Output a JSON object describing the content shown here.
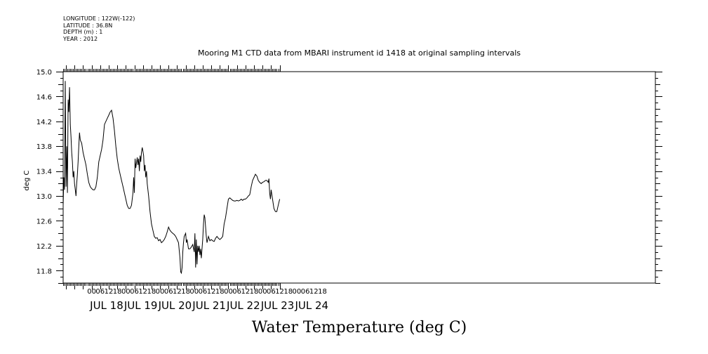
{
  "header": {
    "longitude": "LONGITUDE : 122W(-122)",
    "latitude": "LATITUDE : 36.8N",
    "depth": "DEPTH (m) : 1",
    "year": "YEAR : 2012"
  },
  "chart_data": {
    "type": "line",
    "title": "Mooring M1 CTD data from MBARI instrument id 1418 at original sampling intervals",
    "xlabel": "Water Temperature (deg C)",
    "ylabel": "deg C",
    "ylim": [
      11.6,
      15.0
    ],
    "y_ticks": [
      "11.8",
      "12.2",
      "12.6",
      "13.0",
      "13.4",
      "13.8",
      "14.2",
      "14.6",
      "15.0"
    ],
    "x_range_hours": [
      -20,
      126
    ],
    "x_unit": "hours from 2012-07-18 00:00",
    "hour_tick_labels": [
      "00",
      "06",
      "12",
      "18",
      "00",
      "06",
      "12",
      "18",
      "00",
      "06",
      "12",
      "18",
      "00",
      "06",
      "12",
      "18",
      "00",
      "06",
      "12",
      "18",
      "00",
      "06",
      "12",
      "18",
      "00",
      "06",
      "12",
      "18"
    ],
    "day_labels": [
      "JUL 18",
      "JUL 19",
      "JUL 20",
      "JUL 21",
      "JUL 22",
      "JUL 23",
      "JUL 24"
    ],
    "grid": false,
    "series": [
      {
        "values": [
          [
            -20,
            12.85
          ],
          [
            -19.5,
            13.3
          ],
          [
            -19,
            13.1
          ],
          [
            -18.5,
            14.85
          ],
          [
            -18,
            13.15
          ],
          [
            -17.5,
            13.8
          ],
          [
            -17,
            13.05
          ],
          [
            -16.5,
            14.55
          ],
          [
            -16,
            14.35
          ],
          [
            -15.5,
            14.75
          ],
          [
            -15,
            14.15
          ],
          [
            -14.5,
            13.95
          ],
          [
            -14,
            13.7
          ],
          [
            -13.5,
            13.55
          ],
          [
            -13,
            13.3
          ],
          [
            -12.5,
            13.4
          ],
          [
            -12,
            13.2
          ],
          [
            -11.5,
            13.1
          ],
          [
            -11,
            13.0
          ],
          [
            -10.5,
            13.2
          ],
          [
            -10,
            13.35
          ],
          [
            -9.5,
            13.55
          ],
          [
            -9,
            13.8
          ],
          [
            -8.5,
            14.02
          ],
          [
            -8,
            13.9
          ],
          [
            -7,
            13.85
          ],
          [
            -6,
            13.7
          ],
          [
            -5,
            13.6
          ],
          [
            -4,
            13.5
          ],
          [
            -3,
            13.35
          ],
          [
            -2,
            13.22
          ],
          [
            -1,
            13.15
          ],
          [
            0,
            13.12
          ],
          [
            1,
            13.1
          ],
          [
            2,
            13.1
          ],
          [
            3,
            13.15
          ],
          [
            4,
            13.3
          ],
          [
            5,
            13.55
          ],
          [
            6,
            13.65
          ],
          [
            7,
            13.75
          ],
          [
            8,
            13.9
          ],
          [
            9,
            14.15
          ],
          [
            10,
            14.2
          ],
          [
            11,
            14.25
          ],
          [
            12,
            14.3
          ],
          [
            13,
            14.35
          ],
          [
            14,
            14.38
          ],
          [
            15,
            14.25
          ],
          [
            16,
            14.05
          ],
          [
            17,
            13.8
          ],
          [
            18,
            13.6
          ],
          [
            19,
            13.45
          ],
          [
            20,
            13.35
          ],
          [
            21,
            13.25
          ],
          [
            22,
            13.15
          ],
          [
            23,
            13.05
          ],
          [
            24,
            12.95
          ],
          [
            25,
            12.85
          ],
          [
            26,
            12.8
          ],
          [
            27,
            12.8
          ],
          [
            28,
            12.85
          ],
          [
            29,
            13.05
          ],
          [
            29.5,
            13.3
          ],
          [
            30,
            13.05
          ],
          [
            30.5,
            13.6
          ],
          [
            31,
            13.45
          ],
          [
            32,
            13.62
          ],
          [
            32.5,
            13.5
          ],
          [
            33,
            13.6
          ],
          [
            33.5,
            13.4
          ],
          [
            34,
            13.65
          ],
          [
            34.5,
            13.55
          ],
          [
            35,
            13.7
          ],
          [
            35.5,
            13.78
          ],
          [
            36,
            13.72
          ],
          [
            36.5,
            13.65
          ],
          [
            37,
            13.4
          ],
          [
            37.5,
            13.5
          ],
          [
            38,
            13.3
          ],
          [
            38.5,
            13.4
          ],
          [
            39,
            13.2
          ],
          [
            40,
            13.0
          ],
          [
            41,
            12.75
          ],
          [
            42,
            12.55
          ],
          [
            43,
            12.45
          ],
          [
            44,
            12.35
          ],
          [
            45,
            12.32
          ],
          [
            46,
            12.33
          ],
          [
            47,
            12.28
          ],
          [
            48,
            12.3
          ],
          [
            49,
            12.25
          ],
          [
            50,
            12.27
          ],
          [
            51,
            12.3
          ],
          [
            52,
            12.35
          ],
          [
            53,
            12.42
          ],
          [
            54,
            12.5
          ],
          [
            55,
            12.45
          ],
          [
            56,
            12.42
          ],
          [
            57,
            12.4
          ],
          [
            58,
            12.38
          ],
          [
            59,
            12.35
          ],
          [
            60,
            12.3
          ],
          [
            61,
            12.25
          ],
          [
            62,
            12.0
          ],
          [
            62.5,
            11.78
          ],
          [
            63,
            11.76
          ],
          [
            63.5,
            11.85
          ],
          [
            64,
            12.1
          ],
          [
            64.5,
            12.25
          ],
          [
            65,
            12.35
          ],
          [
            66,
            12.4
          ],
          [
            66.5,
            12.25
          ],
          [
            67,
            12.3
          ],
          [
            68,
            12.15
          ],
          [
            69,
            12.15
          ],
          [
            70,
            12.18
          ],
          [
            71,
            12.22
          ],
          [
            72,
            12.1
          ],
          [
            72.5,
            12.4
          ],
          [
            73,
            11.85
          ],
          [
            73.5,
            12.3
          ],
          [
            74,
            11.9
          ],
          [
            74.5,
            12.2
          ],
          [
            75,
            12.1
          ],
          [
            75.5,
            12.2
          ],
          [
            76,
            12.05
          ],
          [
            76.5,
            12.15
          ],
          [
            77,
            12.0
          ],
          [
            77.5,
            12.15
          ],
          [
            78,
            12.3
          ],
          [
            78.5,
            12.55
          ],
          [
            79,
            12.7
          ],
          [
            79.5,
            12.65
          ],
          [
            80,
            12.5
          ],
          [
            80.5,
            12.35
          ],
          [
            81,
            12.25
          ],
          [
            82,
            12.35
          ],
          [
            83,
            12.28
          ],
          [
            84,
            12.3
          ],
          [
            85,
            12.28
          ],
          [
            86,
            12.27
          ],
          [
            87,
            12.32
          ],
          [
            88,
            12.35
          ],
          [
            89,
            12.32
          ],
          [
            90,
            12.3
          ],
          [
            91,
            12.32
          ],
          [
            92,
            12.35
          ],
          [
            93,
            12.55
          ],
          [
            94,
            12.65
          ],
          [
            95,
            12.8
          ],
          [
            96,
            12.95
          ],
          [
            97,
            12.97
          ],
          [
            98,
            12.95
          ],
          [
            99,
            12.93
          ],
          [
            100,
            12.92
          ],
          [
            101,
            12.92
          ],
          [
            102,
            12.93
          ],
          [
            103,
            12.92
          ],
          [
            104,
            12.93
          ],
          [
            105,
            12.95
          ],
          [
            106,
            12.93
          ],
          [
            107,
            12.95
          ],
          [
            108,
            12.95
          ],
          [
            109,
            12.97
          ],
          [
            110,
            13.0
          ],
          [
            111,
            13.02
          ],
          [
            112,
            13.15
          ],
          [
            113,
            13.25
          ],
          [
            114,
            13.3
          ],
          [
            115,
            13.35
          ],
          [
            116,
            13.32
          ],
          [
            117,
            13.25
          ],
          [
            118,
            13.22
          ],
          [
            119,
            13.2
          ],
          [
            120,
            13.22
          ],
          [
            121,
            13.23
          ],
          [
            122,
            13.25
          ],
          [
            123,
            13.25
          ],
          [
            124,
            13.22
          ],
          [
            124.5,
            13.28
          ],
          [
            125,
            13.05
          ],
          [
            125.5,
            12.95
          ],
          [
            126,
            13.1
          ],
          [
            127,
            12.95
          ],
          [
            128,
            12.8
          ],
          [
            129,
            12.75
          ],
          [
            130,
            12.75
          ],
          [
            131,
            12.85
          ],
          [
            132,
            12.95
          ]
        ]
      }
    ]
  }
}
